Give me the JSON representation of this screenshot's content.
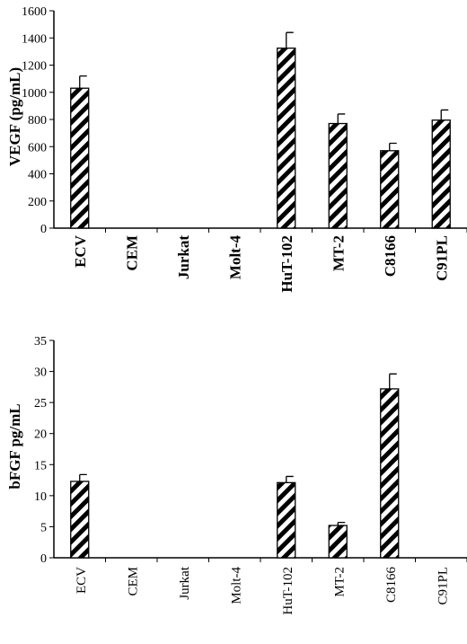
{
  "chart_data": [
    {
      "type": "bar",
      "ylabel": "VEGF (pg/mL)",
      "xlabel": "",
      "categories": [
        "ECV",
        "CEM",
        "Jurkat",
        "Molt-4",
        "HuT-102",
        "MT-2",
        "C8166",
        "C91PL"
      ],
      "values": [
        1030,
        0,
        0,
        0,
        1325,
        770,
        570,
        795
      ],
      "errors": [
        90,
        0,
        0,
        0,
        115,
        70,
        55,
        75
      ],
      "ylim": [
        0,
        1600
      ],
      "yticks": [
        "0",
        "200",
        "400",
        "600",
        "800",
        "1000",
        "1200",
        "1400",
        "1600"
      ],
      "grid": false,
      "bar_pattern": "diagonal-hatch",
      "colors": {
        "bar_stripe": "#000000",
        "bar_bg": "#ffffff"
      }
    },
    {
      "type": "bar",
      "ylabel": "bFGF pg/mL",
      "xlabel": "",
      "categories": [
        "ECV",
        "CEM",
        "Jurkat",
        "Molt-4",
        "HuT-102",
        "MT-2",
        "C8166",
        "C91PL"
      ],
      "values": [
        12.3,
        0,
        0,
        0,
        12.1,
        5.2,
        27.2,
        0
      ],
      "errors": [
        1.1,
        0,
        0,
        0,
        1.0,
        0.5,
        2.4,
        0
      ],
      "ylim": [
        0,
        35
      ],
      "yticks": [
        "0",
        "5",
        "10",
        "15",
        "20",
        "25",
        "30",
        "35"
      ],
      "grid": false,
      "bar_pattern": "diagonal-hatch",
      "colors": {
        "bar_stripe": "#000000",
        "bar_bg": "#ffffff"
      }
    }
  ]
}
